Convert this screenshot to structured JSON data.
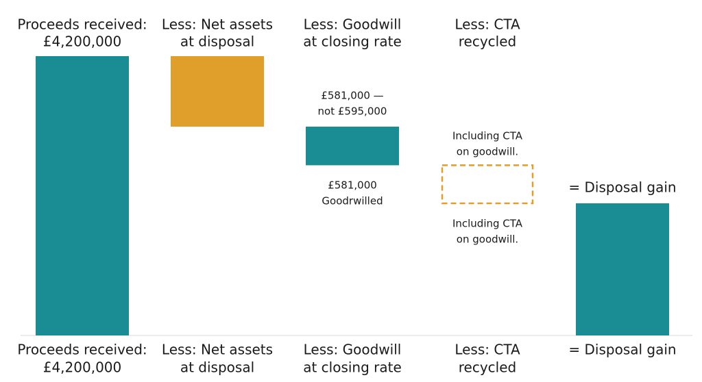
{
  "chart_data": {
    "type": "waterfall",
    "categories": [
      [
        "Proceeds received:",
        "£4,200,000"
      ],
      [
        "Less: Net assets",
        "at disposal"
      ],
      [
        "Less: Goodwill",
        "at closing rate"
      ],
      [
        "Less: CTA",
        "recycled"
      ],
      [
        "= Disposal gain"
      ]
    ],
    "values": [
      4200000,
      1060000,
      581000,
      572000,
      1987000
    ],
    "kinds": [
      "total",
      "decrease",
      "decrease",
      "decrease",
      "total"
    ],
    "colors": [
      "#1a8c94",
      "#e09e2b",
      "#1a8c94",
      "#e09e2b",
      "#1a8c94"
    ],
    "dashed": [
      false,
      false,
      false,
      true,
      false
    ],
    "ylim": [
      0,
      4200000
    ],
    "annotations": {
      "goodwill_above": [
        "£581,000 —",
        "not £595,000"
      ],
      "goodwill_below": [
        "£581,000",
        "Goodrwilled"
      ],
      "cta_above": [
        "Including CTA",
        "on goodwill."
      ],
      "cta_below": [
        "Including CTA",
        "on goodwill."
      ]
    }
  }
}
